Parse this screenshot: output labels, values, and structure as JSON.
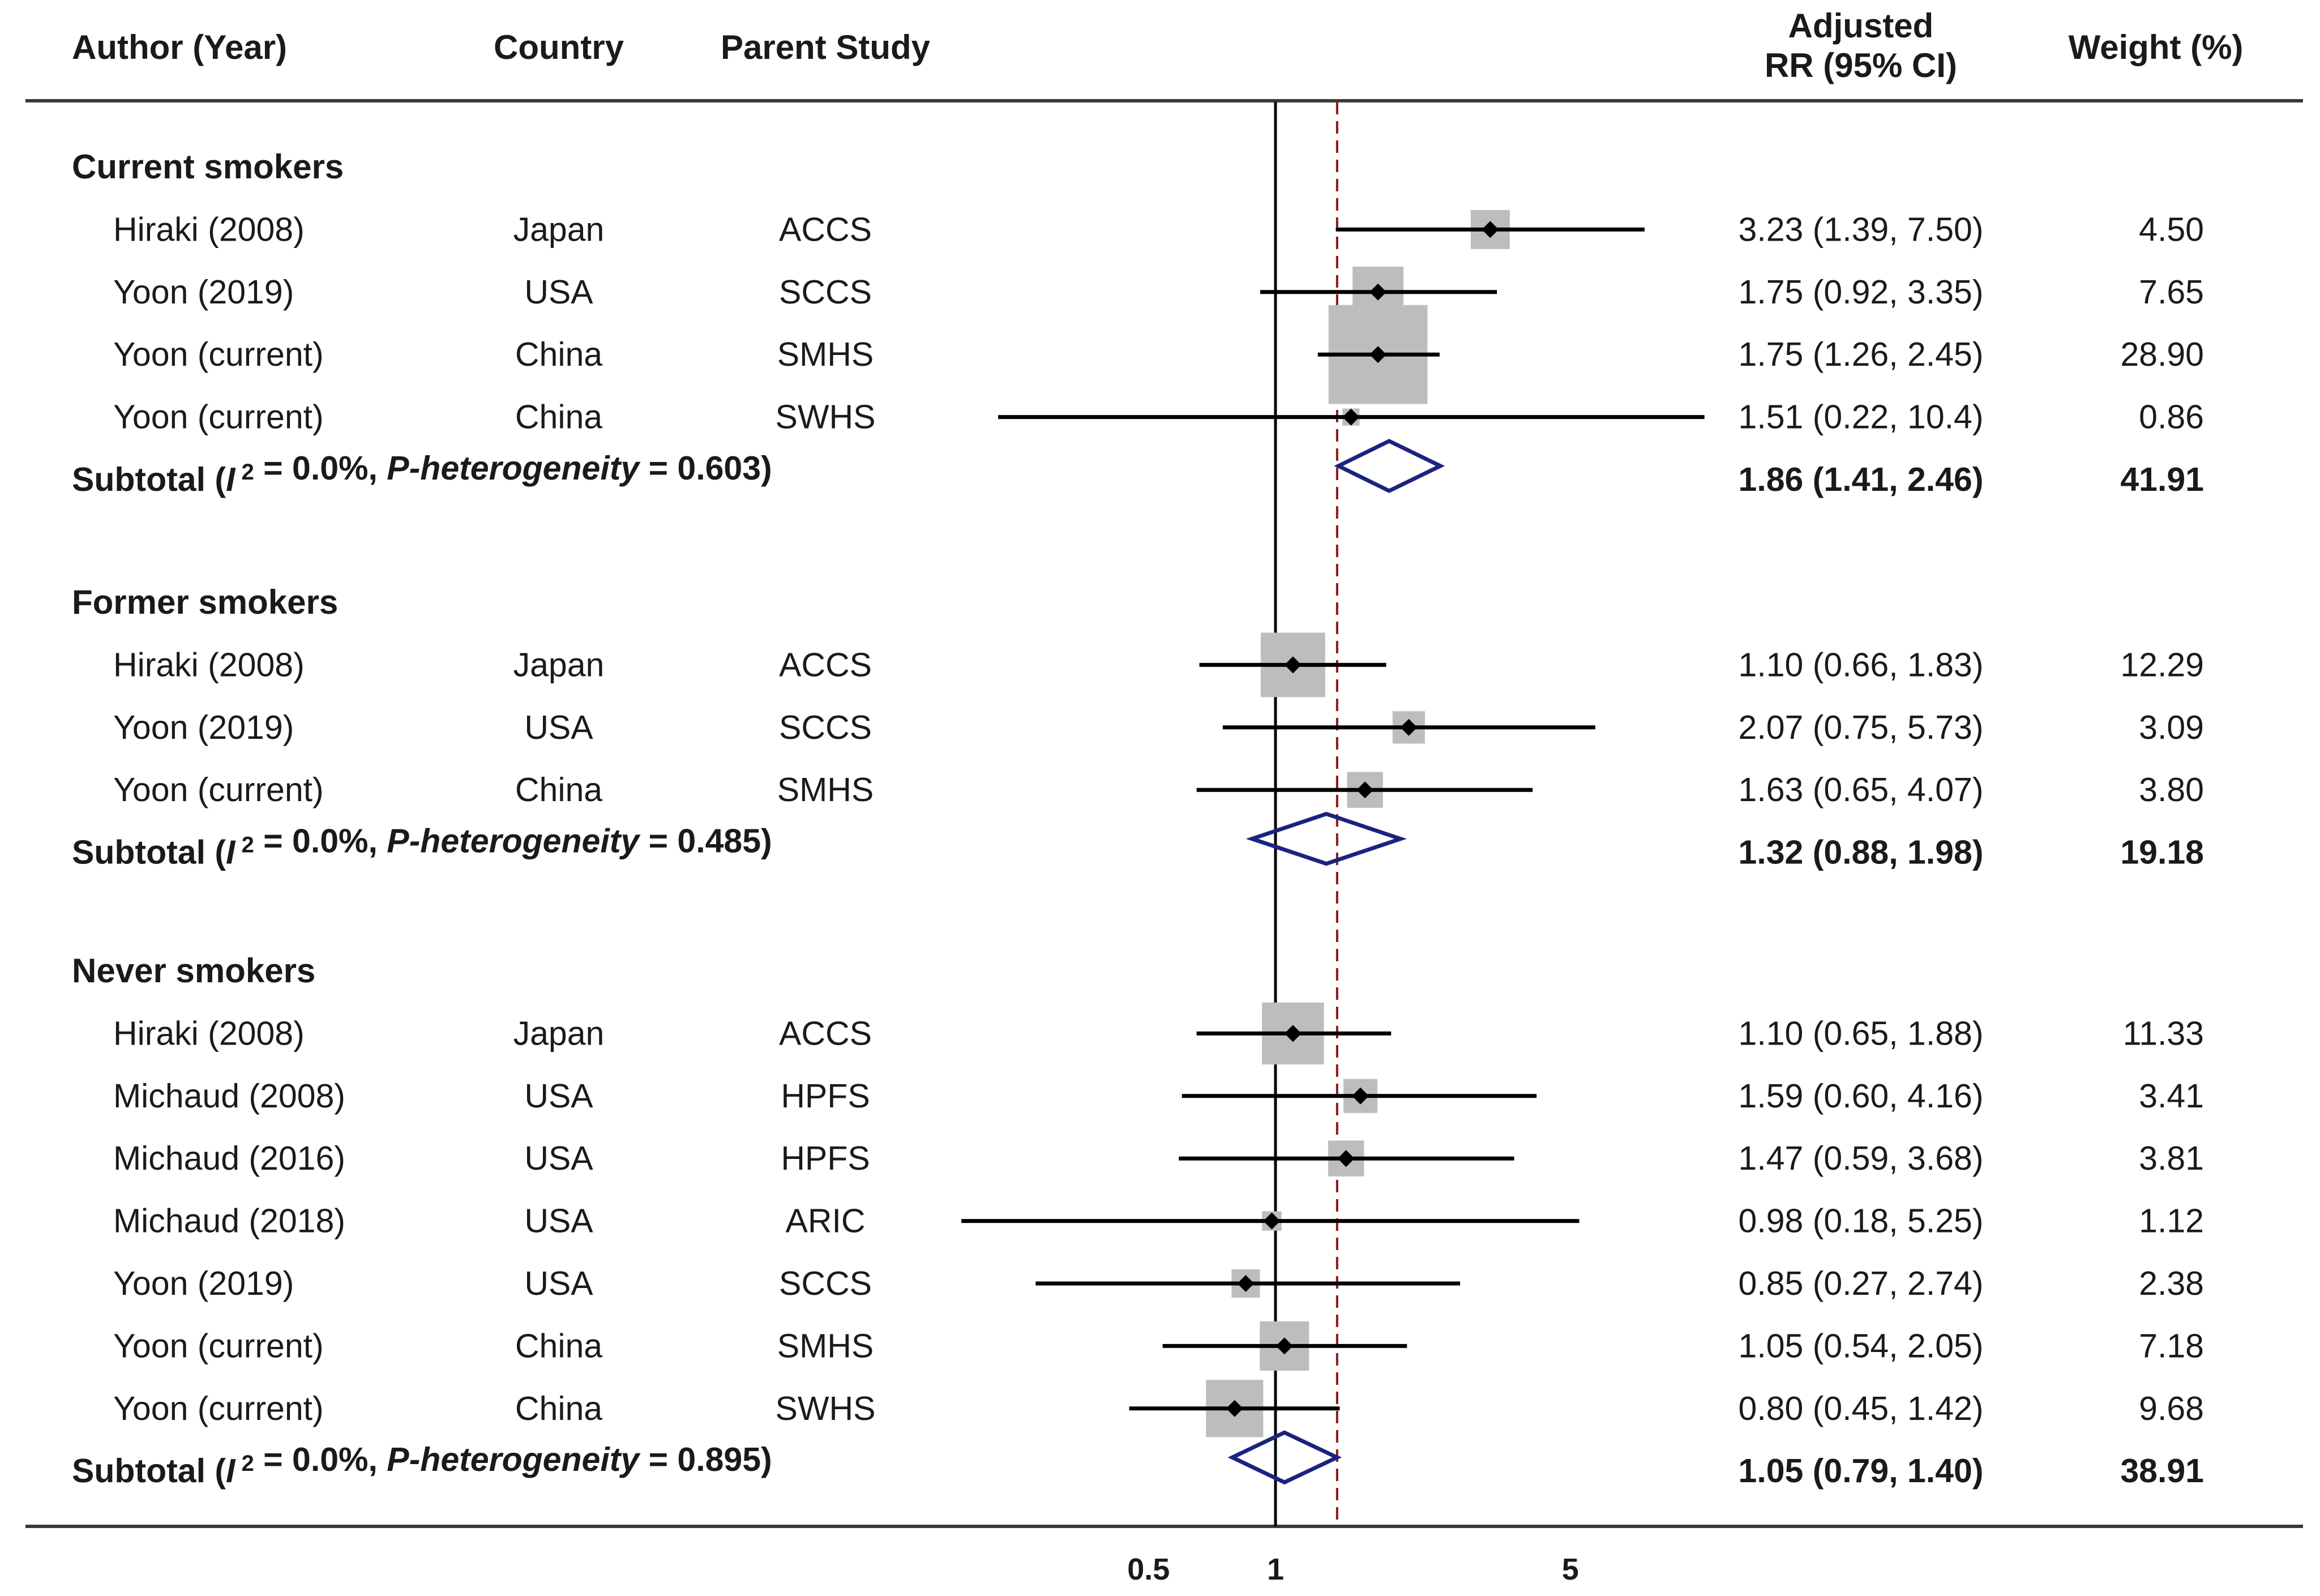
{
  "header": {
    "author": "Author (Year)",
    "country": "Country",
    "parent_study": "Parent Study",
    "rr_line1": "Adjusted",
    "rr_line2": "RR (95% CI)",
    "weight": "Weight (%)"
  },
  "colors": {
    "box": "#bdbdbd",
    "point": "#000000",
    "diamond": "#1a237e",
    "overall_line": "#8b1a1a",
    "axis": "#000000",
    "text": "#1a1a1a"
  },
  "chart_data": {
    "type": "forest",
    "x_scale": "log",
    "xlim": [
      0.2,
      12
    ],
    "x_ticks": [
      {
        "value": 0.5,
        "label": "0.5"
      },
      {
        "value": 1,
        "label": "1"
      },
      {
        "value": 5,
        "label": "5"
      }
    ],
    "null_line": 1,
    "overall_estimate": 1.4,
    "groups": [
      {
        "name": "Current smokers",
        "studies": [
          {
            "author": "Hiraki (2008)",
            "country": "Japan",
            "study": "ACCS",
            "rr": 3.23,
            "lo": 1.39,
            "hi": 7.5,
            "ci_text": "3.23 (1.39, 7.50)",
            "weight": 4.5,
            "weight_text": "4.50"
          },
          {
            "author": "Yoon (2019)",
            "country": "USA",
            "study": "SCCS",
            "rr": 1.75,
            "lo": 0.92,
            "hi": 3.35,
            "ci_text": "1.75 (0.92, 3.35)",
            "weight": 7.65,
            "weight_text": "7.65"
          },
          {
            "author": "Yoon (current)",
            "country": "China",
            "study": "SMHS",
            "rr": 1.75,
            "lo": 1.26,
            "hi": 2.45,
            "ci_text": "1.75 (1.26, 2.45)",
            "weight": 28.9,
            "weight_text": "28.90"
          },
          {
            "author": "Yoon (current)",
            "country": "China",
            "study": "SWHS",
            "rr": 1.51,
            "lo": 0.22,
            "hi": 10.4,
            "ci_text": "1.51 (0.22, 10.4)",
            "weight": 0.86,
            "weight_text": "0.86"
          }
        ],
        "subtotal": {
          "prefix": "Subtotal (",
          "i2_symbol": "I",
          "i2_sup": "2",
          "i2_value": " = 0.0%, ",
          "p_label": "P-heterogeneity",
          "p_value": " = 0.603)",
          "rr": 1.86,
          "lo": 1.41,
          "hi": 2.46,
          "ci_text": "1.86 (1.41, 2.46)",
          "weight_text": "41.91"
        }
      },
      {
        "name": "Former smokers",
        "studies": [
          {
            "author": "Hiraki (2008)",
            "country": "Japan",
            "study": "ACCS",
            "rr": 1.1,
            "lo": 0.66,
            "hi": 1.83,
            "ci_text": "1.10 (0.66, 1.83)",
            "weight": 12.29,
            "weight_text": "12.29"
          },
          {
            "author": "Yoon (2019)",
            "country": "USA",
            "study": "SCCS",
            "rr": 2.07,
            "lo": 0.75,
            "hi": 5.73,
            "ci_text": "2.07 (0.75, 5.73)",
            "weight": 3.09,
            "weight_text": "3.09"
          },
          {
            "author": "Yoon (current)",
            "country": "China",
            "study": "SMHS",
            "rr": 1.63,
            "lo": 0.65,
            "hi": 4.07,
            "ci_text": "1.63 (0.65, 4.07)",
            "weight": 3.8,
            "weight_text": "3.80"
          }
        ],
        "subtotal": {
          "prefix": "Subtotal (",
          "i2_symbol": "I",
          "i2_sup": "2",
          "i2_value": " = 0.0%, ",
          "p_label": "P-heterogeneity",
          "p_value": " = 0.485)",
          "rr": 1.32,
          "lo": 0.88,
          "hi": 1.98,
          "ci_text": "1.32 (0.88, 1.98)",
          "weight_text": "19.18"
        }
      },
      {
        "name": "Never smokers",
        "studies": [
          {
            "author": "Hiraki (2008)",
            "country": "Japan",
            "study": "ACCS",
            "rr": 1.1,
            "lo": 0.65,
            "hi": 1.88,
            "ci_text": "1.10 (0.65, 1.88)",
            "weight": 11.33,
            "weight_text": "11.33"
          },
          {
            "author": "Michaud (2008)",
            "country": "USA",
            "study": "HPFS",
            "rr": 1.59,
            "lo": 0.6,
            "hi": 4.16,
            "ci_text": "1.59 (0.60, 4.16)",
            "weight": 3.41,
            "weight_text": "3.41"
          },
          {
            "author": "Michaud (2016)",
            "country": "USA",
            "study": "HPFS",
            "rr": 1.47,
            "lo": 0.59,
            "hi": 3.68,
            "ci_text": "1.47 (0.59, 3.68)",
            "weight": 3.81,
            "weight_text": "3.81"
          },
          {
            "author": "Michaud (2018)",
            "country": "USA",
            "study": "ARIC",
            "rr": 0.98,
            "lo": 0.18,
            "hi": 5.25,
            "ci_text": "0.98 (0.18, 5.25)",
            "weight": 1.12,
            "weight_text": "1.12"
          },
          {
            "author": "Yoon (2019)",
            "country": "USA",
            "study": "SCCS",
            "rr": 0.85,
            "lo": 0.27,
            "hi": 2.74,
            "ci_text": "0.85 (0.27, 2.74)",
            "weight": 2.38,
            "weight_text": "2.38"
          },
          {
            "author": "Yoon (current)",
            "country": "China",
            "study": "SMHS",
            "rr": 1.05,
            "lo": 0.54,
            "hi": 2.05,
            "ci_text": "1.05 (0.54, 2.05)",
            "weight": 7.18,
            "weight_text": "7.18"
          },
          {
            "author": "Yoon (current)",
            "country": "China",
            "study": "SWHS",
            "rr": 0.8,
            "lo": 0.45,
            "hi": 1.42,
            "ci_text": "0.80 (0.45, 1.42)",
            "weight": 9.68,
            "weight_text": "9.68"
          }
        ],
        "subtotal": {
          "prefix": "Subtotal (",
          "i2_symbol": "I",
          "i2_sup": "2",
          "i2_value": " = 0.0%, ",
          "p_label": "P-heterogeneity",
          "p_value": " = 0.895)",
          "rr": 1.05,
          "lo": 0.79,
          "hi": 1.4,
          "ci_text": "1.05 (0.79, 1.40)",
          "weight_text": "38.91"
        }
      }
    ]
  }
}
